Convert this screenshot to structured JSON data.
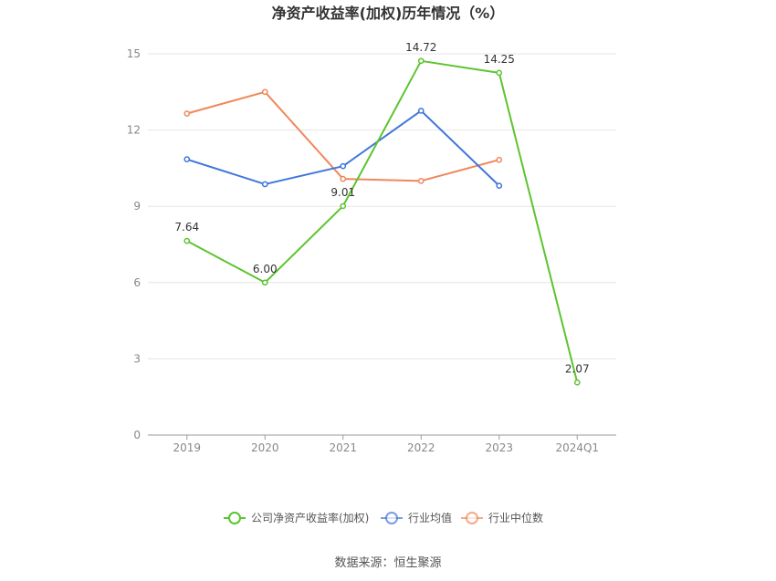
{
  "chart_data": {
    "type": "line",
    "title": "净资产收益率(加权)历年情况（%）",
    "categories": [
      "2019",
      "2020",
      "2021",
      "2022",
      "2023",
      "2024Q1"
    ],
    "ylim": [
      0,
      15
    ],
    "yticks": [
      "0",
      "3",
      "6",
      "9",
      "12",
      "15"
    ],
    "grid": true,
    "legend_position": "bottom",
    "series": [
      {
        "name": "公司净资产收益率(加权)",
        "color": "#5cc42f",
        "values": [
          7.64,
          6.0,
          9.01,
          14.72,
          14.25,
          2.07
        ],
        "labels": [
          "7.64",
          "6.00",
          "9.01",
          "14.72",
          "14.25",
          "2.07"
        ]
      },
      {
        "name": "行业均值",
        "color": "#3f76d9",
        "values": [
          10.85,
          9.87,
          10.58,
          12.76,
          9.81,
          null
        ]
      },
      {
        "name": "行业中位数",
        "color": "#f0875a",
        "values": [
          12.65,
          13.5,
          10.08,
          10.0,
          10.83,
          null
        ]
      }
    ],
    "source": "数据来源：恒生聚源"
  }
}
